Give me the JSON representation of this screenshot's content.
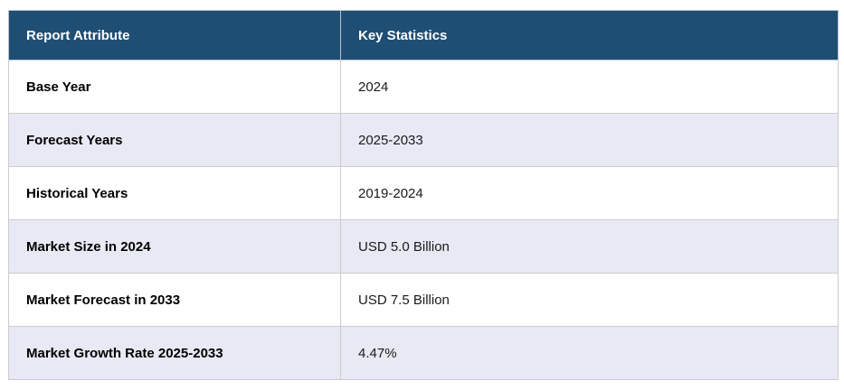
{
  "table": {
    "header": {
      "col1": "Report Attribute",
      "col2": "Key Statistics"
    },
    "rows": [
      {
        "attribute": "Base Year",
        "value": "2024"
      },
      {
        "attribute": "Forecast Years",
        "value": "2025-2033"
      },
      {
        "attribute": "Historical Years",
        "value": "2019-2024"
      },
      {
        "attribute": "Market Size in 2024",
        "value": "USD 5.0 Billion"
      },
      {
        "attribute": "Market Forecast in 2033",
        "value": "USD 7.5 Billion"
      },
      {
        "attribute": "Market Growth Rate 2025-2033",
        "value": "4.47%"
      }
    ],
    "colors": {
      "header_bg": "#1f4e74",
      "header_text": "#ffffff",
      "row_alt_bg": "#e8e9f4",
      "row_bg": "#ffffff",
      "border": "#cccccc",
      "attribute_text": "#000000",
      "value_text": "#1a1a1a"
    }
  }
}
